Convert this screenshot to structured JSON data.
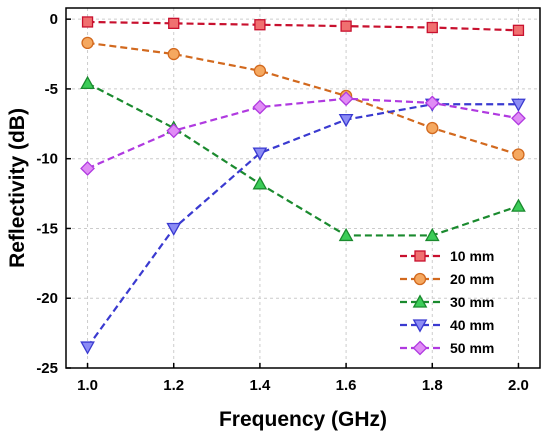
{
  "chart_data": {
    "type": "line",
    "xlabel": "Frequency (GHz)",
    "ylabel": "Reflectivity (dB)",
    "xlim": [
      0.95,
      2.05
    ],
    "ylim": [
      -25,
      0.8
    ],
    "xticks": [
      "1.0",
      "1.2",
      "1.4",
      "1.6",
      "1.8",
      "2.0"
    ],
    "yticks": [
      "0",
      "-5",
      "-10",
      "-15",
      "-20",
      "-25"
    ],
    "grid": true,
    "legend_position": "bottom-right",
    "x": [
      1.0,
      1.2,
      1.4,
      1.6,
      1.8,
      2.0
    ],
    "series": [
      {
        "name": "10 mm",
        "marker": "square",
        "line_color": "#c8102e",
        "fill_color": "#f07070",
        "values": [
          -0.2,
          -0.3,
          -0.4,
          -0.5,
          -0.6,
          -0.8
        ]
      },
      {
        "name": "20 mm",
        "marker": "circle",
        "line_color": "#d2691e",
        "fill_color": "#f5a860",
        "values": [
          -1.7,
          -2.5,
          -3.7,
          -5.5,
          -7.8,
          -9.7
        ]
      },
      {
        "name": "30 mm",
        "marker": "triangle-up",
        "line_color": "#1a8a2e",
        "fill_color": "#3ccc58",
        "values": [
          -4.6,
          -7.8,
          -11.8,
          -15.5,
          -15.5,
          -13.4
        ]
      },
      {
        "name": "40 mm",
        "marker": "triangle-down",
        "line_color": "#3a3ad0",
        "fill_color": "#8c8cf5",
        "values": [
          -23.5,
          -15.0,
          -9.6,
          -7.2,
          -6.1,
          -6.1
        ]
      },
      {
        "name": "50 mm",
        "marker": "diamond",
        "line_color": "#b03ae0",
        "fill_color": "#e08cf5",
        "values": [
          -10.7,
          -8.0,
          -6.3,
          -5.7,
          -6.0,
          -7.1
        ]
      }
    ]
  }
}
